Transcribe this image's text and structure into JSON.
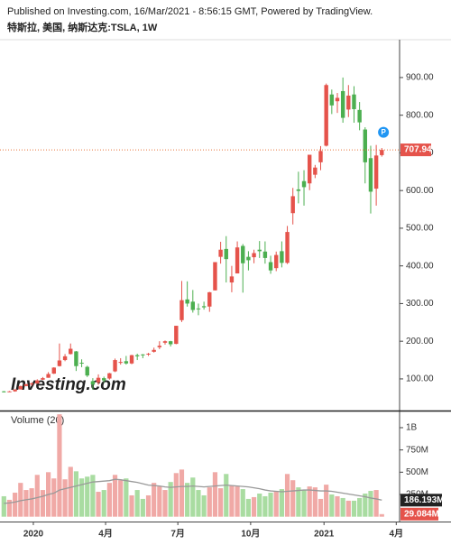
{
  "header": {
    "published": "Published on Investing.com, 16/Mar/2021 - 8:56:15 GMT, Powered by TradingView.",
    "symbol": "特斯拉, 美国, 纳斯达克:TSLA, 1W"
  },
  "watermark": "Investing.com",
  "chart_data": [
    {
      "type": "candlestick",
      "badge": "P",
      "up_color": "#e5534b",
      "down_color": "#4caf50",
      "last_price": 707.94,
      "price_line_color": "#e8733a",
      "open": [
        67,
        66,
        67,
        72,
        81,
        86,
        88,
        98,
        103,
        114,
        134,
        150,
        166,
        173,
        143,
        132,
        94,
        91,
        102,
        101,
        120,
        145,
        147,
        141,
        163,
        165,
        167,
        172,
        184,
        196,
        200,
        193,
        256,
        311,
        305,
        287,
        293,
        292,
        335,
        424,
        445,
        356,
        380,
        453,
        424,
        423,
        443,
        438,
        410,
        394,
        439,
        408,
        540,
        603,
        625,
        619,
        642,
        675,
        719,
        855,
        837,
        864,
        815,
        855,
        814,
        762,
        686,
        605,
        694
      ],
      "high": [
        68,
        68,
        72,
        82,
        87,
        91,
        99,
        105,
        118,
        131,
        194,
        166,
        194,
        174,
        152,
        135,
        102,
        112,
        106,
        116,
        154,
        155,
        161,
        164,
        167,
        166,
        169,
        183,
        200,
        202,
        201,
        241,
        360,
        359,
        336,
        300,
        305,
        331,
        410,
        464,
        479,
        400,
        465,
        458,
        439,
        443,
        466,
        465,
        427,
        438,
        465,
        506,
        607,
        650,
        654,
        695,
        668,
        718,
        884,
        868,
        859,
        900,
        880,
        877,
        835,
        768,
        719,
        721,
        713
      ],
      "low": [
        64,
        65,
        66,
        72,
        81,
        81,
        87,
        97,
        103,
        113,
        133,
        147,
        165,
        121,
        131,
        105,
        71,
        84,
        90,
        98,
        118,
        138,
        138,
        139,
        150,
        155,
        161,
        170,
        179,
        191,
        186,
        192,
        251,
        292,
        276,
        269,
        284,
        278,
        335,
        406,
        356,
        330,
        380,
        329,
        388,
        407,
        421,
        406,
        379,
        386,
        396,
        405,
        510,
        566,
        560,
        601,
        633,
        654,
        717,
        803,
        806,
        780,
        795,
        780,
        760,
        619,
        539,
        560,
        690
      ],
      "close": [
        66,
        67,
        72,
        81,
        86,
        88,
        96,
        102,
        113,
        130,
        149,
        160,
        180,
        134,
        141,
        109,
        85,
        103,
        96,
        115,
        150,
        145,
        141,
        163,
        160,
        163,
        167,
        177,
        188,
        200,
        192,
        241,
        309,
        300,
        283,
        286,
        290,
        330,
        410,
        443,
        418,
        372,
        449,
        407,
        415,
        434,
        439,
        421,
        388,
        429,
        408,
        490,
        585,
        599,
        609,
        695,
        661,
        705,
        880,
        826,
        846,
        793,
        852,
        816,
        781,
        675,
        597,
        693,
        707.94
      ],
      "xlim": [
        -0.7,
        71.2
      ],
      "xticks": [
        {
          "value": 5.3,
          "label": "2020"
        },
        {
          "value": 18.3,
          "label": "4月"
        },
        {
          "value": 31.3,
          "label": "7月"
        },
        {
          "value": 44.4,
          "label": "10月"
        },
        {
          "value": 57.6,
          "label": "2021"
        },
        {
          "value": 70.6,
          "label": "4月"
        }
      ],
      "ylim": [
        16,
        998
      ],
      "yticks": [
        {
          "value": 100,
          "label": "100.00"
        },
        {
          "value": 200,
          "label": "200.00"
        },
        {
          "value": 300,
          "label": "300.00"
        },
        {
          "value": 400,
          "label": "400.00"
        },
        {
          "value": 500,
          "label": "500.00"
        },
        {
          "value": 600,
          "label": "600.00"
        },
        {
          "value": 700,
          "label": "700.00"
        },
        {
          "value": 800,
          "label": "800.00"
        },
        {
          "value": 900,
          "label": "900.00"
        }
      ]
    },
    {
      "type": "bar",
      "title": "Volume (20)",
      "up_color": "#f0a9a6",
      "down_color": "#a9dca1",
      "ma_color": "#999999",
      "values": [
        230,
        190,
        270,
        380,
        300,
        320,
        470,
        300,
        500,
        430,
        1150,
        420,
        560,
        510,
        430,
        450,
        470,
        280,
        300,
        380,
        470,
        410,
        430,
        240,
        300,
        200,
        240,
        380,
        340,
        300,
        390,
        490,
        530,
        380,
        440,
        300,
        240,
        330,
        500,
        320,
        480,
        350,
        340,
        310,
        200,
        220,
        260,
        230,
        270,
        280,
        310,
        480,
        410,
        330,
        300,
        340,
        330,
        200,
        360,
        250,
        230,
        210,
        180,
        180,
        210,
        260,
        290,
        300,
        29.084
      ],
      "last_value_label": "29.084M",
      "ma": [
        150,
        155,
        165,
        180,
        190,
        200,
        215,
        230,
        250,
        265,
        300,
        315,
        330,
        345,
        360,
        375,
        390,
        395,
        400,
        405,
        420,
        415,
        405,
        395,
        385,
        370,
        355,
        350,
        345,
        335,
        330,
        335,
        340,
        340,
        345,
        340,
        335,
        340,
        345,
        350,
        355,
        350,
        345,
        340,
        335,
        325,
        315,
        300,
        290,
        285,
        280,
        285,
        290,
        295,
        300,
        300,
        295,
        290,
        290,
        285,
        275,
        265,
        255,
        245,
        235,
        225,
        210,
        200,
        186.193
      ],
      "ma_last_label": "186.193M",
      "ylim": [
        -54,
        1182
      ],
      "yticks": [
        {
          "value": 250,
          "label": "250M"
        },
        {
          "value": 500,
          "label": "500M"
        },
        {
          "value": 750,
          "label": "750M"
        },
        {
          "value": 1000,
          "label": "1B"
        }
      ]
    }
  ]
}
